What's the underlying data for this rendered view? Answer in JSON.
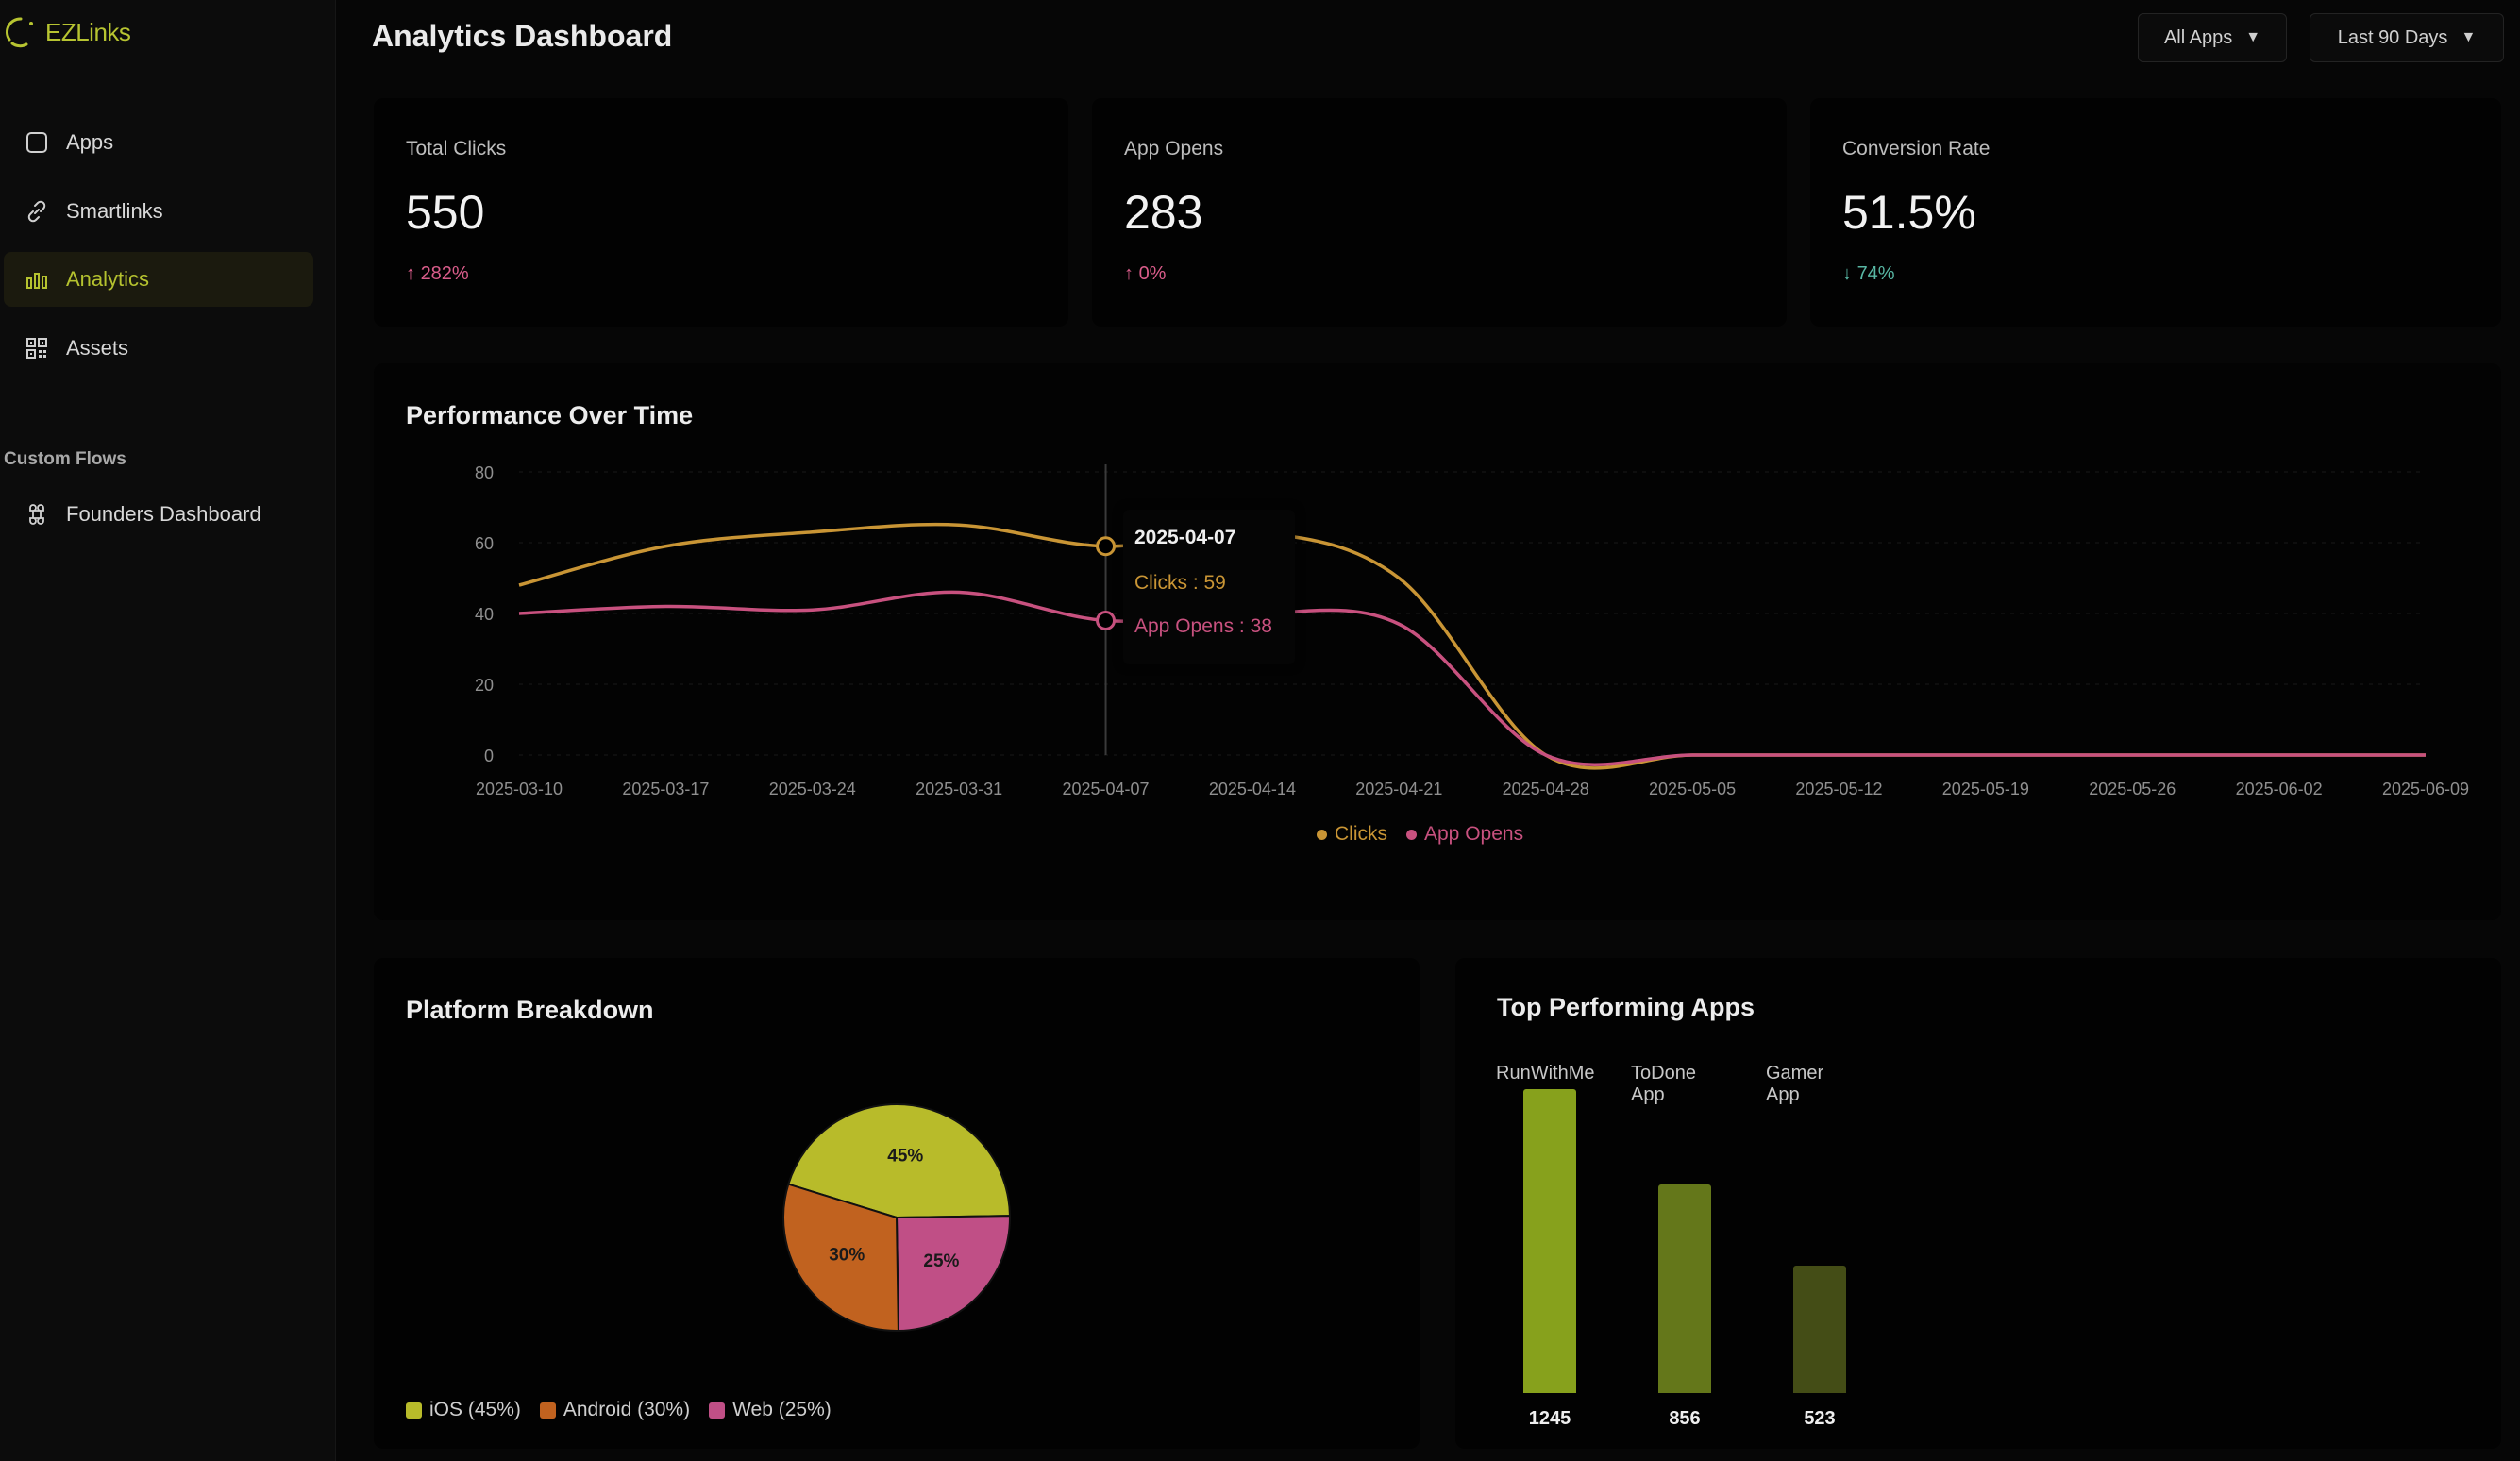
{
  "brand": {
    "name": "EZLinks",
    "accent": "#b7c431"
  },
  "sidebar": {
    "items": [
      {
        "label": "Apps",
        "icon": "square-icon"
      },
      {
        "label": "Smartlinks",
        "icon": "link-icon"
      },
      {
        "label": "Analytics",
        "icon": "bar-chart-icon",
        "active": true
      },
      {
        "label": "Assets",
        "icon": "qr-code-icon"
      }
    ],
    "section_label": "Custom Flows",
    "custom_flows": [
      {
        "label": "Founders Dashboard",
        "icon": "command-icon"
      }
    ]
  },
  "header": {
    "title": "Analytics Dashboard",
    "app_filter": "All Apps",
    "date_filter": "Last 90 Days"
  },
  "stats": [
    {
      "label": "Total Clicks",
      "value": "550",
      "change": "282%",
      "direction": "up"
    },
    {
      "label": "App Opens",
      "value": "283",
      "change": "0%",
      "direction": "up"
    },
    {
      "label": "Conversion Rate",
      "value": "51.5%",
      "change": "74%",
      "direction": "down"
    }
  ],
  "performance": {
    "title": "Performance Over Time",
    "tooltip": {
      "date": "2025-04-07",
      "clicks_text": "Clicks : 59",
      "opens_text": "App Opens : 38"
    },
    "legend": {
      "clicks": "Clicks",
      "opens": "App Opens"
    }
  },
  "platform": {
    "title": "Platform Breakdown",
    "legend": [
      "iOS (45%)",
      "Android (30%)",
      "Web (25%)"
    ]
  },
  "top_apps": {
    "title": "Top Performing Apps"
  },
  "colors": {
    "clicks": "#c99535",
    "opens": "#c8517f",
    "ios": "#b8bb2a",
    "android": "#c1621f",
    "web": "#c04f86",
    "bar1": "#87a11c",
    "bar2": "#64771a",
    "bar3": "#444d16"
  },
  "chart_data": [
    {
      "type": "line",
      "title": "Performance Over Time",
      "xlabel": "",
      "ylabel": "",
      "ylim": [
        0,
        80
      ],
      "yticks": [
        0,
        20,
        40,
        60,
        80
      ],
      "x": [
        "2025-03-10",
        "2025-03-17",
        "2025-03-24",
        "2025-03-31",
        "2025-04-07",
        "2025-04-14",
        "2025-04-21",
        "2025-04-28",
        "2025-05-05",
        "2025-05-12",
        "2025-05-19",
        "2025-05-26",
        "2025-06-02",
        "2025-06-09"
      ],
      "series": [
        {
          "name": "Clicks",
          "values": [
            48,
            59,
            63,
            65,
            59,
            63,
            50,
            0,
            0,
            0,
            0,
            0,
            0,
            0
          ]
        },
        {
          "name": "App Opens",
          "values": [
            40,
            42,
            41,
            46,
            38,
            40,
            37,
            0,
            0,
            0,
            0,
            0,
            0,
            0
          ]
        }
      ],
      "legend": "bottom"
    },
    {
      "type": "pie",
      "title": "Platform Breakdown",
      "labels": [
        "iOS",
        "Android",
        "Web"
      ],
      "values": [
        45,
        30,
        25
      ],
      "slice_labels": [
        "45%",
        "30%",
        "25%"
      ],
      "legend": "bottom-left"
    },
    {
      "type": "bar",
      "title": "Top Performing Apps",
      "categories": [
        "RunWithMe",
        "ToDone App",
        "Gamer App"
      ],
      "values": [
        1245,
        856,
        523
      ],
      "value_labels": [
        "1245",
        "856",
        "523"
      ],
      "ylim": [
        0,
        1245
      ]
    }
  ]
}
